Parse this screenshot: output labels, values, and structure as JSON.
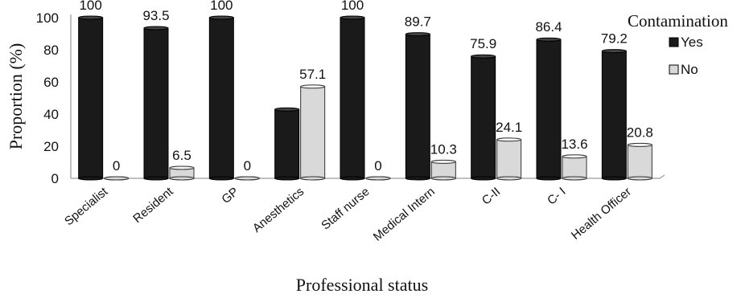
{
  "chart_data": {
    "type": "bar",
    "title": "",
    "xlabel": "Professional status",
    "ylabel": "Proportion (%)",
    "ylim": [
      0,
      100
    ],
    "yticks": [
      0,
      20,
      40,
      60,
      80,
      100
    ],
    "grid": false,
    "legend": {
      "title": "Contamination",
      "placement": "top-right"
    },
    "categories": [
      "Specialist",
      "Resident",
      "GP",
      "Anesthetics",
      "Staff nurse",
      "Medical Intern",
      "C-II",
      "C- I",
      "Health Officer"
    ],
    "series": [
      {
        "name": "Yes",
        "color": "#1a1a1a",
        "values": [
          100,
          93.5,
          100,
          42.9,
          100,
          89.7,
          75.9,
          86.4,
          79.2
        ],
        "labels": [
          "100",
          "93.5",
          "100",
          "",
          "100",
          "89.7",
          "75.9",
          "86.4",
          "79.2"
        ]
      },
      {
        "name": "No",
        "color": "#d9d9d9",
        "values": [
          0,
          6.5,
          0,
          57.1,
          0,
          10.3,
          24.1,
          13.6,
          20.8
        ],
        "labels": [
          "0",
          "6.5",
          "0",
          "57.1",
          "0",
          "10.3",
          "24.1",
          "13.6",
          "20.8"
        ]
      }
    ]
  }
}
